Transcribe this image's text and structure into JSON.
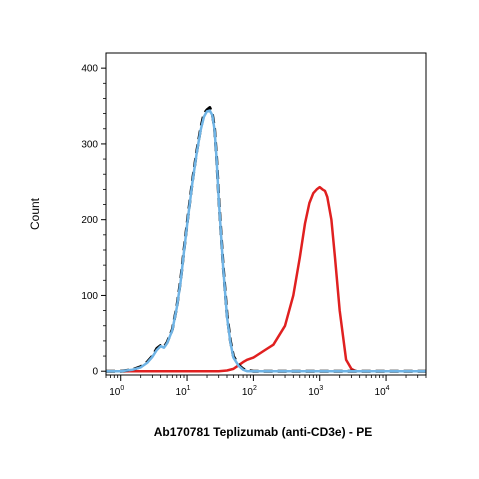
{
  "chart_data": {
    "type": "line",
    "title": "",
    "xlabel": "Ab170781 Teplizumab (anti-CD3e) - PE",
    "ylabel": "Count",
    "x_scale": "log",
    "xlim": [
      0.6,
      40000
    ],
    "ylim": [
      -5,
      420
    ],
    "x_ticks": [
      {
        "value": 1,
        "base": "10",
        "exp": "0"
      },
      {
        "value": 10,
        "base": "10",
        "exp": "1"
      },
      {
        "value": 100,
        "base": "10",
        "exp": "2"
      },
      {
        "value": 1000,
        "base": "10",
        "exp": "3"
      },
      {
        "value": 10000,
        "base": "10",
        "exp": "4"
      }
    ],
    "y_ticks": [
      {
        "value": 0,
        "label": "0"
      },
      {
        "value": 100,
        "label": "100"
      },
      {
        "value": 200,
        "label": "200"
      },
      {
        "value": 300,
        "label": "300"
      },
      {
        "value": 400,
        "label": "400"
      }
    ],
    "grid": false,
    "legend": "none",
    "series": [
      {
        "color": "#000000",
        "dash": true,
        "x": [
          0.6,
          1.0,
          1.5,
          2.0,
          2.5,
          3.0,
          3.5,
          4.0,
          4.5,
          5.0,
          6.0,
          7.0,
          8.0,
          9.0,
          10,
          12,
          14,
          16,
          18,
          20,
          22,
          24,
          26,
          28,
          30,
          35,
          40,
          45,
          50,
          60,
          70,
          80,
          100,
          150,
          40000
        ],
        "y": [
          0,
          0,
          2,
          6,
          12,
          20,
          30,
          34,
          32,
          38,
          55,
          85,
          120,
          160,
          195,
          250,
          290,
          320,
          340,
          345,
          348,
          340,
          320,
          280,
          230,
          140,
          75,
          40,
          20,
          8,
          3,
          1,
          0,
          0,
          0
        ]
      },
      {
        "color": "#6fb4e6",
        "dash": false,
        "x": [
          0.6,
          1.0,
          1.5,
          2.0,
          2.5,
          3.0,
          3.5,
          4.0,
          4.5,
          5.0,
          6.0,
          7.0,
          8.0,
          9.0,
          10,
          12,
          14,
          16,
          18,
          20,
          22,
          24,
          26,
          28,
          30,
          35,
          40,
          45,
          50,
          60,
          70,
          80,
          100,
          150,
          40000
        ],
        "y": [
          0,
          0,
          2,
          5,
          11,
          19,
          28,
          33,
          31,
          37,
          54,
          84,
          118,
          158,
          193,
          248,
          288,
          318,
          336,
          343,
          344,
          338,
          318,
          278,
          228,
          138,
          72,
          38,
          18,
          7,
          2,
          0,
          0,
          0,
          0
        ]
      },
      {
        "color": "#e02020",
        "dash": false,
        "x": [
          0.6,
          30,
          40,
          50,
          60,
          70,
          80,
          100,
          150,
          200,
          300,
          400,
          500,
          600,
          700,
          800,
          900,
          1000,
          1100,
          1200,
          1300,
          1500,
          1700,
          2000,
          2500,
          3000,
          3500,
          40000
        ],
        "y": [
          0,
          0,
          1,
          3,
          8,
          12,
          15,
          18,
          28,
          35,
          60,
          100,
          150,
          195,
          222,
          235,
          240,
          243,
          240,
          238,
          230,
          200,
          150,
          80,
          15,
          3,
          0,
          0
        ]
      }
    ]
  }
}
